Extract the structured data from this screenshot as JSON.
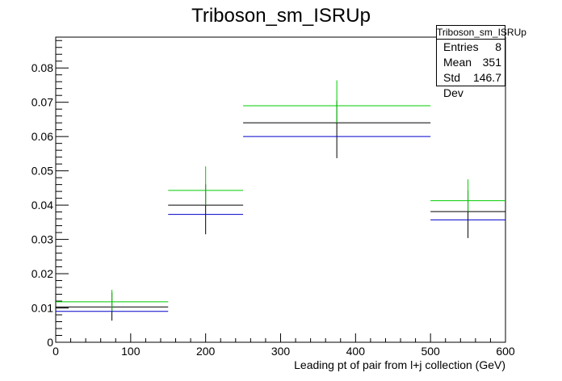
{
  "chart_data": {
    "type": "histogram",
    "title": "Triboson_sm_ISRUp",
    "xlabel": "Leading pt of pair from l+j collection (GeV)",
    "ylabel": "",
    "xlim": [
      0,
      600
    ],
    "ylim": [
      0,
      0.089
    ],
    "x_ticks": [
      0,
      100,
      200,
      300,
      400,
      500,
      600
    ],
    "y_ticks": [
      0,
      0.01,
      0.02,
      0.03,
      0.04,
      0.05,
      0.06,
      0.07,
      0.08
    ],
    "bins": [
      [
        0,
        150
      ],
      [
        150,
        250
      ],
      [
        250,
        500
      ],
      [
        500,
        600
      ]
    ],
    "series": [
      {
        "color": "#000000",
        "values": [
          0.0103,
          0.04,
          0.064,
          0.0381
        ],
        "err_low": [
          0.0063,
          0.0315,
          0.0537,
          0.0304
        ],
        "err_high": [
          0.0145,
          0.0461,
          0.0705,
          0.0443
        ]
      },
      {
        "color": "#00cc00",
        "values": [
          0.0118,
          0.0443,
          0.069,
          0.0413
        ],
        "err_low": [
          0.009,
          0.04,
          0.064,
          0.0381
        ],
        "err_high": [
          0.0153,
          0.0513,
          0.0764,
          0.0475
        ]
      },
      {
        "color": "#0000cc",
        "values": [
          0.009,
          0.0373,
          0.06,
          0.0357
        ],
        "err_low": [
          0.009,
          0.0373,
          0.06,
          0.0357
        ],
        "err_high": [
          0.009,
          0.0373,
          0.06,
          0.0357
        ]
      }
    ]
  },
  "stats": {
    "title": "Triboson_sm_ISRUp",
    "rows": [
      {
        "label": "Entries",
        "value": "8"
      },
      {
        "label": "Mean",
        "value": "351"
      },
      {
        "label": "Std Dev",
        "value": "146.7"
      }
    ]
  }
}
